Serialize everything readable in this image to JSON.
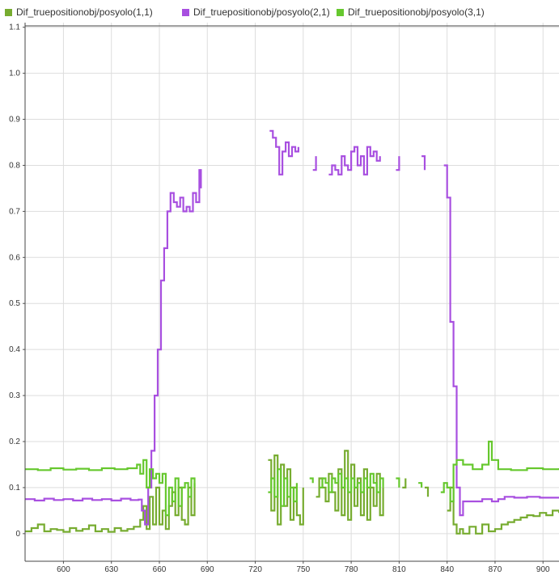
{
  "legend": {
    "items": [
      {
        "label": "Dif_truepositionobj/posyolo(1,1)",
        "color": "#77AC30"
      },
      {
        "label": "Dif_truepositionobj/posyolo(2,1)",
        "color": "#A84FE0"
      },
      {
        "label": "Dif_truepositionobj/posyolo(3,1)",
        "color": "#66C82E"
      }
    ]
  },
  "chart_data": {
    "type": "line",
    "title": "",
    "xlabel": "",
    "ylabel": "",
    "xlim": [
      576,
      910
    ],
    "ylim": [
      -0.06,
      1.11
    ],
    "xticks": [
      600,
      630,
      660,
      690,
      720,
      750,
      780,
      810,
      840,
      870,
      900
    ],
    "yticks": [
      0,
      0.1,
      0.2,
      0.3,
      0.4,
      0.5,
      0.6,
      0.7,
      0.8,
      0.9,
      1.0,
      1.1
    ],
    "ytick_labels": [
      "0",
      "0.1",
      "0.2",
      "0.3",
      "0.4",
      "0.5",
      "0.6",
      "0.7",
      "0.8",
      "0.9",
      "1.0",
      "1.1"
    ],
    "grid": true,
    "legend_position": "top",
    "series": [
      {
        "name": "Dif_truepositionobj/posyolo(1,1)",
        "color": "#77AC30",
        "segments": [
          [
            [
              576,
              0.005
            ],
            [
              580,
              0.012
            ],
            [
              584,
              0.02
            ],
            [
              588,
              0.005
            ],
            [
              592,
              0.01
            ],
            [
              596,
              0.008
            ],
            [
              600,
              0.004
            ],
            [
              604,
              0.012
            ],
            [
              608,
              0.006
            ],
            [
              612,
              0.01
            ],
            [
              616,
              0.018
            ],
            [
              620,
              0.005
            ],
            [
              624,
              0.01
            ],
            [
              628,
              0.004
            ],
            [
              632,
              0.012
            ],
            [
              636,
              0.006
            ],
            [
              640,
              0.01
            ],
            [
              644,
              0.015
            ],
            [
              648,
              0.03
            ],
            [
              650,
              0.06
            ],
            [
              652,
              0.01
            ],
            [
              654,
              0.08
            ],
            [
              656,
              0.02
            ],
            [
              658,
              0.1
            ],
            [
              660,
              0.02
            ],
            [
              662,
              0.05
            ],
            [
              664,
              0.01
            ],
            [
              666,
              0.06
            ],
            [
              668,
              0.09
            ],
            [
              670,
              0.04
            ],
            [
              672,
              0.1
            ],
            [
              674,
              0.03
            ],
            [
              676,
              0.02
            ],
            [
              678,
              0.1
            ],
            [
              680,
              0.04
            ],
            [
              682,
              0.11
            ]
          ],
          [
            [
              728,
              0.16
            ],
            [
              730,
              0.05
            ],
            [
              732,
              0.17
            ],
            [
              734,
              0.02
            ],
            [
              736,
              0.15
            ],
            [
              738,
              0.06
            ],
            [
              740,
              0.14
            ],
            [
              742,
              0.03
            ],
            [
              744,
              0.1
            ],
            [
              746,
              0.04
            ],
            [
              748,
              0.02
            ],
            [
              750,
              0.1
            ]
          ],
          [
            [
              758,
              0.08
            ],
            [
              760,
              0.12
            ],
            [
              762,
              0.1
            ],
            [
              764,
              0.07
            ],
            [
              766,
              0.13
            ],
            [
              768,
              0.09
            ],
            [
              770,
              0.05
            ],
            [
              772,
              0.14
            ],
            [
              774,
              0.04
            ],
            [
              776,
              0.18
            ],
            [
              778,
              0.03
            ],
            [
              780,
              0.15
            ],
            [
              782,
              0.06
            ],
            [
              784,
              0.12
            ],
            [
              786,
              0.04
            ],
            [
              788,
              0.14
            ],
            [
              790,
              0.03
            ],
            [
              792,
              0.1
            ],
            [
              794,
              0.06
            ],
            [
              796,
              0.13
            ],
            [
              798,
              0.04
            ],
            [
              800,
              0.1
            ]
          ],
          [
            [
              812,
              0.1
            ],
            [
              814,
              0.12
            ]
          ],
          [
            [
              826,
              0.1
            ],
            [
              828,
              0.08
            ]
          ],
          [
            [
              840,
              0.05
            ],
            [
              842,
              0.1
            ],
            [
              844,
              0.02
            ],
            [
              846,
              0.0
            ],
            [
              848,
              0.01
            ],
            [
              850,
              0.0
            ],
            [
              854,
              0.015
            ],
            [
              858,
              0.0
            ],
            [
              862,
              0.02
            ],
            [
              866,
              0.005
            ],
            [
              870,
              0.01
            ],
            [
              874,
              0.02
            ],
            [
              878,
              0.025
            ],
            [
              882,
              0.03
            ],
            [
              886,
              0.035
            ],
            [
              890,
              0.04
            ],
            [
              894,
              0.038
            ],
            [
              898,
              0.045
            ],
            [
              902,
              0.04
            ],
            [
              906,
              0.05
            ],
            [
              910,
              0.045
            ]
          ]
        ]
      },
      {
        "name": "Dif_truepositionobj/posyolo(2,1)",
        "color": "#A84FE0",
        "segments": [
          [
            [
              576,
              0.075
            ],
            [
              582,
              0.072
            ],
            [
              588,
              0.076
            ],
            [
              594,
              0.073
            ],
            [
              600,
              0.075
            ],
            [
              606,
              0.072
            ],
            [
              612,
              0.076
            ],
            [
              618,
              0.073
            ],
            [
              624,
              0.075
            ],
            [
              630,
              0.072
            ],
            [
              636,
              0.076
            ],
            [
              642,
              0.073
            ],
            [
              647,
              0.074
            ],
            [
              649,
              0.05
            ],
            [
              651,
              0.02
            ],
            [
              653,
              0.1
            ],
            [
              655,
              0.18
            ],
            [
              657,
              0.3
            ],
            [
              659,
              0.4
            ],
            [
              661,
              0.55
            ],
            [
              663,
              0.62
            ],
            [
              665,
              0.7
            ],
            [
              667,
              0.74
            ],
            [
              669,
              0.72
            ],
            [
              671,
              0.71
            ],
            [
              673,
              0.73
            ],
            [
              675,
              0.7
            ],
            [
              677,
              0.71
            ],
            [
              679,
              0.7
            ],
            [
              681,
              0.74
            ],
            [
              683,
              0.72
            ],
            [
              685,
              0.79
            ],
            [
              686,
              0.75
            ]
          ],
          [
            [
              729,
              0.875
            ],
            [
              731,
              0.86
            ],
            [
              733,
              0.84
            ],
            [
              735,
              0.78
            ],
            [
              737,
              0.83
            ],
            [
              739,
              0.85
            ],
            [
              741,
              0.82
            ],
            [
              743,
              0.84
            ],
            [
              745,
              0.83
            ],
            [
              747,
              0.84
            ]
          ],
          [
            [
              756,
              0.79
            ],
            [
              758,
              0.82
            ]
          ],
          [
            [
              766,
              0.78
            ],
            [
              768,
              0.8
            ],
            [
              770,
              0.79
            ],
            [
              772,
              0.78
            ],
            [
              774,
              0.82
            ],
            [
              776,
              0.8
            ],
            [
              778,
              0.79
            ],
            [
              780,
              0.83
            ],
            [
              782,
              0.84
            ],
            [
              784,
              0.8
            ],
            [
              786,
              0.82
            ],
            [
              788,
              0.78
            ],
            [
              790,
              0.84
            ],
            [
              792,
              0.82
            ],
            [
              794,
              0.83
            ],
            [
              796,
              0.81
            ],
            [
              798,
              0.82
            ]
          ],
          [
            [
              808,
              0.79
            ],
            [
              810,
              0.82
            ]
          ],
          [
            [
              824,
              0.82
            ],
            [
              826,
              0.79
            ]
          ],
          [
            [
              838,
              0.8
            ],
            [
              840,
              0.73
            ],
            [
              842,
              0.46
            ],
            [
              844,
              0.32
            ],
            [
              846,
              0.1
            ],
            [
              848,
              0.04
            ],
            [
              850,
              0.07
            ],
            [
              856,
              0.07
            ],
            [
              862,
              0.075
            ],
            [
              868,
              0.07
            ],
            [
              872,
              0.075
            ],
            [
              876,
              0.08
            ],
            [
              882,
              0.078
            ],
            [
              890,
              0.08
            ],
            [
              898,
              0.078
            ],
            [
              910,
              0.08
            ]
          ]
        ]
      },
      {
        "name": "Dif_truepositionobj/posyolo(3,1)",
        "color": "#66C82E",
        "segments": [
          [
            [
              576,
              0.14
            ],
            [
              584,
              0.138
            ],
            [
              592,
              0.142
            ],
            [
              600,
              0.139
            ],
            [
              608,
              0.141
            ],
            [
              616,
              0.138
            ],
            [
              624,
              0.142
            ],
            [
              632,
              0.14
            ],
            [
              640,
              0.142
            ],
            [
              646,
              0.15
            ],
            [
              648,
              0.13
            ],
            [
              650,
              0.16
            ],
            [
              652,
              0.1
            ],
            [
              654,
              0.14
            ],
            [
              656,
              0.12
            ],
            [
              658,
              0.13
            ],
            [
              660,
              0.11
            ],
            [
              662,
              0.13
            ],
            [
              664,
              0.04
            ],
            [
              666,
              0.1
            ],
            [
              668,
              0.07
            ],
            [
              670,
              0.12
            ],
            [
              672,
              0.06
            ],
            [
              674,
              0.1
            ],
            [
              676,
              0.11
            ],
            [
              678,
              0.08
            ],
            [
              680,
              0.12
            ],
            [
              682,
              0.1
            ]
          ],
          [
            [
              728,
              0.09
            ],
            [
              730,
              0.12
            ],
            [
              732,
              0.08
            ],
            [
              734,
              0.14
            ],
            [
              736,
              0.06
            ],
            [
              738,
              0.12
            ],
            [
              740,
              0.08
            ],
            [
              742,
              0.1
            ],
            [
              744,
              0.07
            ],
            [
              746,
              0.11
            ]
          ],
          [
            [
              754,
              0.12
            ],
            [
              756,
              0.11
            ]
          ],
          [
            [
              760,
              0.1
            ],
            [
              762,
              0.12
            ],
            [
              764,
              0.11
            ],
            [
              766,
              0.09
            ],
            [
              768,
              0.12
            ],
            [
              770,
              0.11
            ],
            [
              772,
              0.13
            ],
            [
              774,
              0.1
            ],
            [
              776,
              0.12
            ],
            [
              778,
              0.09
            ],
            [
              780,
              0.12
            ],
            [
              782,
              0.1
            ],
            [
              784,
              0.11
            ],
            [
              786,
              0.09
            ],
            [
              788,
              0.12
            ],
            [
              790,
              0.1
            ],
            [
              792,
              0.13
            ],
            [
              794,
              0.11
            ],
            [
              796,
              0.09
            ],
            [
              798,
              0.12
            ],
            [
              800,
              0.1
            ]
          ],
          [
            [
              808,
              0.12
            ],
            [
              810,
              0.1
            ]
          ],
          [
            [
              822,
              0.11
            ],
            [
              824,
              0.1
            ]
          ],
          [
            [
              836,
              0.09
            ],
            [
              838,
              0.11
            ],
            [
              840,
              0.1
            ],
            [
              842,
              0.07
            ],
            [
              844,
              0.15
            ],
            [
              846,
              0.16
            ],
            [
              850,
              0.15
            ],
            [
              856,
              0.14
            ],
            [
              862,
              0.15
            ],
            [
              866,
              0.2
            ],
            [
              868,
              0.16
            ],
            [
              872,
              0.14
            ],
            [
              880,
              0.138
            ],
            [
              890,
              0.142
            ],
            [
              900,
              0.14
            ],
            [
              910,
              0.142
            ]
          ]
        ]
      }
    ]
  }
}
